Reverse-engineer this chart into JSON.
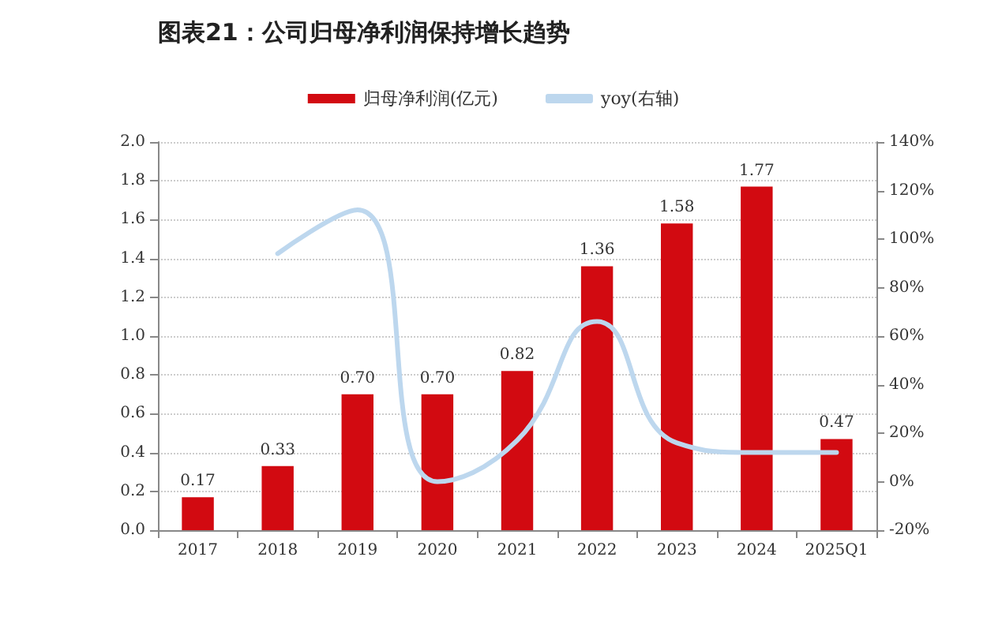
{
  "chart_data": {
    "type": "bar",
    "title": "图表21：公司归母净利润保持增长趋势",
    "categories": [
      "2017",
      "2018",
      "2019",
      "2020",
      "2021",
      "2022",
      "2023",
      "2024",
      "2025Q1"
    ],
    "series": [
      {
        "name": "归母净利润(亿元)",
        "color": "#d20a11",
        "values": [
          0.17,
          0.33,
          0.7,
          0.7,
          0.82,
          1.36,
          1.58,
          1.77,
          0.47
        ],
        "value_labels": [
          "0.17",
          "0.33",
          "0.70",
          "0.70",
          "0.82",
          "1.36",
          "1.58",
          "1.77",
          "0.47"
        ]
      },
      {
        "name": "yoy(右轴)",
        "type": "line",
        "axis": "y2",
        "color": "#bdd7ee",
        "values": [
          null,
          94,
          112,
          0,
          17,
          66,
          16,
          12,
          12
        ]
      }
    ],
    "ylim": [
      0,
      2
    ],
    "yticks": [
      {
        "value": 0,
        "label": "0.0"
      },
      {
        "value": 0.2,
        "label": "0.2"
      },
      {
        "value": 0.4,
        "label": "0.4"
      },
      {
        "value": 0.6,
        "label": "0.6"
      },
      {
        "value": 0.8,
        "label": "0.8"
      },
      {
        "value": 1,
        "label": "1.0"
      },
      {
        "value": 1.2,
        "label": "1.2"
      },
      {
        "value": 1.4,
        "label": "1.4"
      },
      {
        "value": 1.6,
        "label": "1.6"
      },
      {
        "value": 1.8,
        "label": "1.8"
      },
      {
        "value": 2,
        "label": "2.0"
      }
    ],
    "y2lim": [
      -20,
      140
    ],
    "y2ticks": [
      {
        "value": -20,
        "label": "-20%"
      },
      {
        "value": 0,
        "label": "0%"
      },
      {
        "value": 20,
        "label": "20%"
      },
      {
        "value": 40,
        "label": "40%"
      },
      {
        "value": 60,
        "label": "60%"
      },
      {
        "value": 80,
        "label": "80%"
      },
      {
        "value": 100,
        "label": "100%"
      },
      {
        "value": 120,
        "label": "120%"
      },
      {
        "value": 140,
        "label": "140%"
      }
    ],
    "grid": "y",
    "legend": "top",
    "marker": "none",
    "line_style": "solid"
  }
}
